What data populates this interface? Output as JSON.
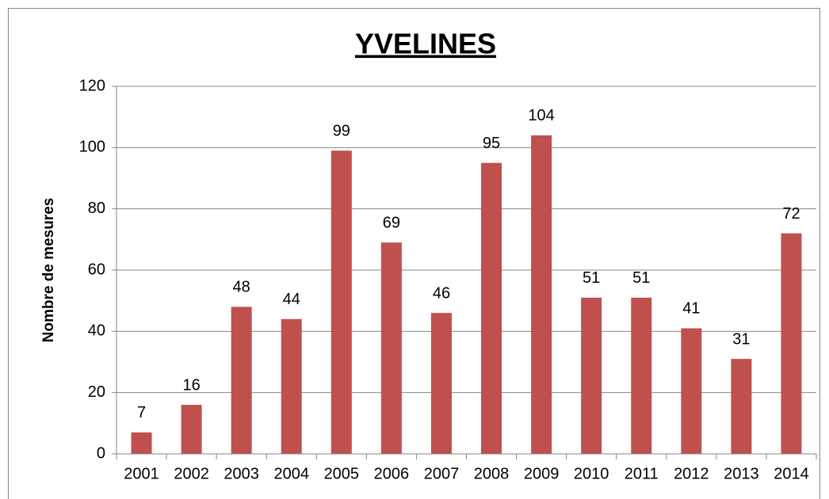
{
  "chart_data": {
    "type": "bar",
    "title": "YVELINES",
    "y_label": "Nombre de mesures",
    "categories": [
      "2001",
      "2002",
      "2003",
      "2004",
      "2005",
      "2006",
      "2007",
      "2008",
      "2009",
      "2010",
      "2011",
      "2012",
      "2013",
      "2014"
    ],
    "values": [
      7,
      16,
      48,
      44,
      99,
      69,
      46,
      95,
      104,
      51,
      51,
      41,
      31,
      72
    ],
    "color": "#c0504d",
    "ylim": [
      0,
      120
    ],
    "yticks": [
      0,
      20,
      40,
      60,
      80,
      100,
      120
    ],
    "grid": true
  }
}
